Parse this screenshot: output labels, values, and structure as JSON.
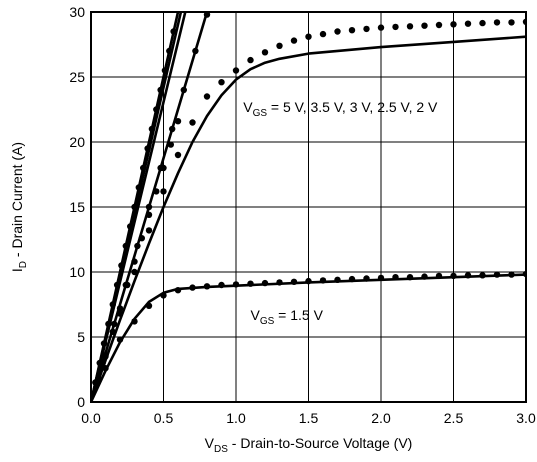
{
  "chart_data": {
    "type": "line",
    "xlabel": {
      "main": "V",
      "sub": "DS",
      "rest": " - Drain-to-Source Voltage (V)"
    },
    "ylabel": {
      "main": "I",
      "sub": "D",
      "rest": " - Drain Current (A)"
    },
    "xlim": [
      0,
      3.0
    ],
    "ylim": [
      0,
      30
    ],
    "x_ticks": [
      0.0,
      0.5,
      1.0,
      1.5,
      2.0,
      2.5,
      3.0
    ],
    "x_tick_labels": [
      "0.0",
      "0.5",
      "1.0",
      "1.5",
      "2.0",
      "2.5",
      "3.0"
    ],
    "y_ticks": [
      0,
      5,
      10,
      15,
      20,
      25,
      30
    ],
    "y_tick_labels": [
      "0",
      "5",
      "10",
      "15",
      "20",
      "25",
      "30"
    ],
    "grid": true,
    "annotations": [
      {
        "id": "vgs-high",
        "main": "V",
        "sub": "GS",
        "rest": " = 5 V, 3.5 V, 3 V, 2.5 V, 2 V",
        "x": 1.05,
        "y": 22.3
      },
      {
        "id": "vgs-low",
        "main": "V",
        "sub": "GS",
        "rest": " = 1.5 V",
        "x": 1.1,
        "y": 6.3
      }
    ],
    "series": [
      {
        "style": "line",
        "x": [
          0,
          0.6
        ],
        "y": [
          0,
          30
        ]
      },
      {
        "style": "line",
        "x": [
          0,
          0.62
        ],
        "y": [
          0,
          30
        ]
      },
      {
        "style": "line",
        "x": [
          0,
          0.65
        ],
        "y": [
          0,
          30
        ]
      },
      {
        "style": "line",
        "x": [
          0,
          0.8
        ],
        "y": [
          0,
          30
        ]
      },
      {
        "style": "line",
        "x": [
          0,
          0.1,
          0.2,
          0.3,
          0.4,
          0.5,
          0.6,
          0.7,
          0.8,
          0.9,
          1.0,
          1.1,
          1.2,
          1.3,
          1.5,
          2.0,
          2.5,
          3.0
        ],
        "y": [
          0,
          3.2,
          6.3,
          9.3,
          12.2,
          15.0,
          17.6,
          20.0,
          22.0,
          23.6,
          24.8,
          25.6,
          26.1,
          26.4,
          26.8,
          27.3,
          27.7,
          28.1
        ]
      },
      {
        "style": "line",
        "x": [
          0,
          0.1,
          0.2,
          0.3,
          0.4,
          0.5,
          0.6,
          0.8,
          1.0,
          1.5,
          2.0,
          2.5,
          3.0
        ],
        "y": [
          0,
          2.4,
          4.6,
          6.4,
          7.7,
          8.4,
          8.7,
          8.85,
          8.95,
          9.2,
          9.4,
          9.6,
          9.8
        ]
      },
      {
        "style": "dots",
        "x": [
          0.03,
          0.06,
          0.09,
          0.12,
          0.15,
          0.18,
          0.21,
          0.24,
          0.27,
          0.3,
          0.33,
          0.36,
          0.39,
          0.42,
          0.45,
          0.48,
          0.51,
          0.54,
          0.57
        ],
        "y": [
          1.5,
          3.0,
          4.5,
          6.0,
          7.5,
          9.0,
          10.5,
          12.0,
          13.5,
          15.0,
          16.5,
          18.0,
          19.5,
          21.0,
          22.5,
          24.0,
          25.5,
          27.0,
          28.5
        ]
      },
      {
        "style": "dots",
        "x": [
          0.05,
          0.1,
          0.15,
          0.2,
          0.25,
          0.3,
          0.35,
          0.4,
          0.45,
          0.5,
          0.55,
          0.6
        ],
        "y": [
          1.8,
          3.6,
          5.4,
          7.2,
          9.0,
          10.8,
          12.6,
          14.4,
          16.2,
          18.0,
          19.8,
          21.6
        ]
      },
      {
        "style": "dots",
        "x": [
          0.08,
          0.16,
          0.24,
          0.32,
          0.4,
          0.48,
          0.56,
          0.64,
          0.72,
          0.8
        ],
        "y": [
          3.0,
          6.0,
          9.0,
          12.0,
          15.0,
          18.0,
          21.0,
          24.0,
          27.0,
          29.8
        ]
      },
      {
        "style": "dots",
        "x": [
          0.1,
          0.2,
          0.3,
          0.4,
          0.5,
          0.6,
          0.7,
          0.8,
          0.9,
          1.0,
          1.1,
          1.2,
          1.3,
          1.4,
          1.5,
          1.6,
          1.7,
          1.8,
          1.9,
          2.0,
          2.1,
          2.2,
          2.3,
          2.4,
          2.5,
          2.6,
          2.7,
          2.8,
          2.9,
          3.0
        ],
        "y": [
          3.5,
          6.8,
          10.0,
          13.2,
          16.2,
          19.0,
          21.5,
          23.5,
          24.6,
          25.5,
          26.3,
          26.9,
          27.4,
          27.8,
          28.1,
          28.3,
          28.5,
          28.6,
          28.7,
          28.8,
          28.85,
          28.9,
          28.95,
          29.0,
          29.05,
          29.1,
          29.15,
          29.2,
          29.2,
          29.25
        ]
      },
      {
        "style": "dots",
        "x": [
          0.1,
          0.2,
          0.3,
          0.4,
          0.5,
          0.6,
          0.7,
          0.8,
          0.9,
          1.0,
          1.1,
          1.2,
          1.3,
          1.4,
          1.5,
          1.6,
          1.7,
          1.8,
          1.9,
          2.0,
          2.1,
          2.2,
          2.3,
          2.4,
          2.5,
          2.6,
          2.7,
          2.8,
          2.9,
          3.0
        ],
        "y": [
          2.6,
          4.8,
          6.2,
          7.4,
          8.2,
          8.6,
          8.8,
          8.9,
          9.0,
          9.05,
          9.1,
          9.15,
          9.2,
          9.25,
          9.3,
          9.35,
          9.4,
          9.45,
          9.5,
          9.55,
          9.6,
          9.6,
          9.65,
          9.7,
          9.7,
          9.75,
          9.75,
          9.8,
          9.8,
          9.85
        ]
      }
    ]
  }
}
